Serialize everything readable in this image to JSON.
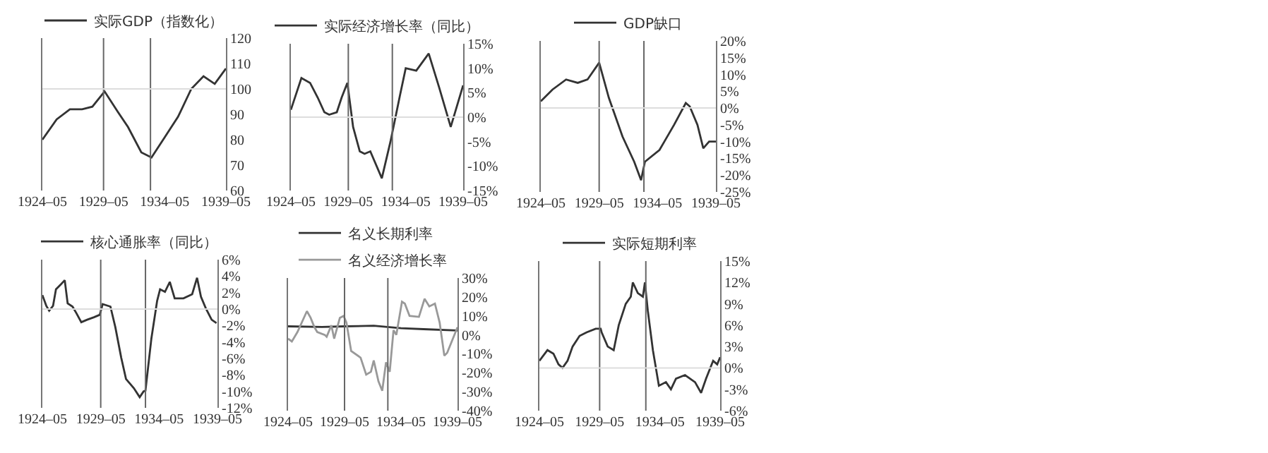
{
  "chart_data": [
    {
      "type": "line",
      "legend": "top",
      "series": [
        {
          "name": "实际GDP（指数化）",
          "color": "#333333",
          "x": [
            "1924-05",
            "1925-07",
            "1926-08",
            "1927-08",
            "1928-06",
            "1929-06",
            "1930-07",
            "1931-05",
            "1932-06",
            "1933-04",
            "1934-05",
            "1935-06",
            "1936-07",
            "1937-07",
            "1938-06",
            "1939-05"
          ],
          "values": [
            80,
            88,
            92,
            92,
            93,
            99,
            91,
            85,
            75,
            73,
            81,
            89,
            100,
            105,
            102,
            108
          ]
        }
      ],
      "xlim": [
        "1924-05",
        "1939-05"
      ],
      "xticks": [
        {
          "value": "1924-05",
          "label": "1924–05"
        },
        {
          "value": "1929-05",
          "label": "1929–05"
        },
        {
          "value": "1934-05",
          "label": "1934–05"
        },
        {
          "value": "1939-05",
          "label": "1939–05"
        }
      ],
      "ylim": [
        60,
        120
      ],
      "yticks": [
        60,
        70,
        80,
        90,
        100,
        110,
        120
      ],
      "ref_lines": [
        {
          "axis": "x",
          "value": "1929-05",
          "color": "#666666"
        },
        {
          "axis": "x",
          "value": "1933-03",
          "color": "#666666"
        },
        {
          "axis": "y",
          "value": 100,
          "color": "#dddddd"
        }
      ]
    },
    {
      "type": "line",
      "legend": "top",
      "series": [
        {
          "name": "实际经济增长率（同比）",
          "color": "#333333",
          "x": [
            "1924-05",
            "1925-04",
            "1926-01",
            "1926-09",
            "1927-04",
            "1927-09",
            "1928-05",
            "1928-10",
            "1929-04",
            "1929-10",
            "1930-05",
            "1930-10",
            "1931-04",
            "1932-04",
            "1933-01",
            "1933-11",
            "1934-05",
            "1935-04",
            "1936-05",
            "1937-04",
            "1938-04",
            "1939-05"
          ],
          "values": [
            1.5,
            8,
            7,
            4,
            1,
            0.5,
            1,
            4,
            7,
            -2,
            -7,
            -7.5,
            -7,
            -12.5,
            -5,
            4.5,
            10,
            9.5,
            13,
            6,
            -2,
            6.5
          ]
        }
      ],
      "xlim": [
        "1924-05",
        "1939-05"
      ],
      "xticks": [
        {
          "value": "1924-05",
          "label": "1924–05"
        },
        {
          "value": "1929-05",
          "label": "1929–05"
        },
        {
          "value": "1934-05",
          "label": "1934–05"
        },
        {
          "value": "1939-05",
          "label": "1939–05"
        }
      ],
      "ylim": [
        -15,
        15
      ],
      "yticks": [
        {
          "value": -15,
          "label": "-15%"
        },
        {
          "value": -10,
          "label": "-10%"
        },
        {
          "value": -5,
          "label": "-5%"
        },
        {
          "value": 0,
          "label": "0%"
        },
        {
          "value": 5,
          "label": "5%"
        },
        {
          "value": 10,
          "label": "10%"
        },
        {
          "value": 15,
          "label": "15%"
        }
      ],
      "ref_lines": [
        {
          "axis": "x",
          "value": "1929-05",
          "color": "#666666"
        },
        {
          "axis": "x",
          "value": "1933-03",
          "color": "#666666"
        },
        {
          "axis": "y",
          "value": 0,
          "color": "#dddddd"
        }
      ]
    },
    {
      "type": "line",
      "legend": "top",
      "series": [
        {
          "name": "GDP缺口",
          "color": "#333333",
          "x": [
            "1924-05",
            "1925-05",
            "1926-07",
            "1927-07",
            "1928-05",
            "1929-05",
            "1930-03",
            "1931-05",
            "1932-05",
            "1932-12",
            "1933-04",
            "1934-07",
            "1934-12",
            "1935-10",
            "1936-10",
            "1937-02",
            "1937-10",
            "1938-04",
            "1938-10",
            "1939-05"
          ],
          "values": [
            2,
            5.5,
            8.5,
            7.5,
            8.5,
            13.5,
            3,
            -8.5,
            -16,
            -21.5,
            -16,
            -12.5,
            -10,
            -5,
            1.5,
            0.5,
            -5,
            -12,
            -10,
            -10
          ]
        }
      ],
      "xlim": [
        "1924-05",
        "1939-05"
      ],
      "xticks": [
        {
          "value": "1924-05",
          "label": "1924–05"
        },
        {
          "value": "1929-05",
          "label": "1929–05"
        },
        {
          "value": "1934-05",
          "label": "1934–05"
        },
        {
          "value": "1939-05",
          "label": "1939–05"
        }
      ],
      "ylim": [
        -25,
        20
      ],
      "yticks": [
        {
          "value": -25,
          "label": "-25%"
        },
        {
          "value": -20,
          "label": "-20%"
        },
        {
          "value": -15,
          "label": "-15%"
        },
        {
          "value": -10,
          "label": "-10%"
        },
        {
          "value": -5,
          "label": "-5%"
        },
        {
          "value": 0,
          "label": "0%"
        },
        {
          "value": 5,
          "label": "5%"
        },
        {
          "value": 10,
          "label": "10%"
        },
        {
          "value": 15,
          "label": "15%"
        },
        {
          "value": 20,
          "label": "20%"
        }
      ],
      "ref_lines": [
        {
          "axis": "x",
          "value": "1929-05",
          "color": "#666666"
        },
        {
          "axis": "x",
          "value": "1933-03",
          "color": "#666666"
        },
        {
          "axis": "y",
          "value": 0,
          "color": "#dddddd"
        }
      ]
    },
    {
      "type": "line",
      "legend": "top",
      "series": [
        {
          "name": "核心通胀率（同比）",
          "color": "#333333",
          "x": [
            "1924-05",
            "1924-09",
            "1924-12",
            "1925-04",
            "1925-07",
            "1925-12",
            "1926-04",
            "1926-07",
            "1926-12",
            "1927-04",
            "1927-09",
            "1928-03",
            "1928-10",
            "1929-04",
            "1929-07",
            "1930-03",
            "1930-08",
            "1931-02",
            "1931-07",
            "1932-03",
            "1932-09",
            "1933-01",
            "1933-03",
            "1933-09",
            "1934-03",
            "1934-06",
            "1934-11",
            "1935-04",
            "1935-09",
            "1936-06",
            "1937-03",
            "1937-08",
            "1937-12",
            "1938-05",
            "1938-11",
            "1939-04"
          ],
          "values": [
            1.7,
            0.4,
            -0.2,
            0.4,
            2.4,
            3,
            3.5,
            0.7,
            0.3,
            -0.5,
            -1.6,
            -1.3,
            -1,
            -0.7,
            0.6,
            0.3,
            -2.2,
            -5.9,
            -8.5,
            -9.6,
            -10.7,
            -10,
            -9.9,
            -3.6,
            1,
            2.4,
            2.1,
            3.3,
            1.3,
            1.3,
            1.8,
            3.8,
            1.5,
            0.1,
            -1.3,
            -1.7
          ]
        }
      ],
      "xlim": [
        "1924-05",
        "1939-05"
      ],
      "xticks": [
        {
          "value": "1924-05",
          "label": "1924–05"
        },
        {
          "value": "1929-05",
          "label": "1929–05"
        },
        {
          "value": "1934-05",
          "label": "1934–05"
        },
        {
          "value": "1939-05",
          "label": "1939–05"
        }
      ],
      "ylim": [
        -12,
        6
      ],
      "yticks": [
        {
          "value": -12,
          "label": "-12%"
        },
        {
          "value": -10,
          "label": "-10%"
        },
        {
          "value": -8,
          "label": "-8%"
        },
        {
          "value": -6,
          "label": "-6%"
        },
        {
          "value": -4,
          "label": "-4%"
        },
        {
          "value": -2,
          "label": "-2%"
        },
        {
          "value": 0,
          "label": "0%"
        },
        {
          "value": 2,
          "label": "2%"
        },
        {
          "value": 4,
          "label": "4%"
        },
        {
          "value": 6,
          "label": "6%"
        }
      ],
      "ref_lines": [
        {
          "axis": "x",
          "value": "1929-05",
          "color": "#666666"
        },
        {
          "axis": "x",
          "value": "1933-03",
          "color": "#666666"
        },
        {
          "axis": "y",
          "value": 0,
          "color": "#dddddd"
        }
      ]
    },
    {
      "type": "line",
      "legend": "top",
      "series": [
        {
          "name": "名义长期利率",
          "color": "#333333",
          "x": [
            "1924-05",
            "1927-05",
            "1929-05",
            "1931-12",
            "1934-05",
            "1936-05",
            "1939-05"
          ],
          "values": [
            4.5,
            4.2,
            4.5,
            4.8,
            3.5,
            3,
            2.3
          ]
        },
        {
          "name": "名义经济增长率",
          "color": "#999999",
          "x": [
            "1924-05",
            "1924-09",
            "1925-03",
            "1926-01",
            "1926-05",
            "1926-09",
            "1926-12",
            "1927-08",
            "1927-10",
            "1928-03",
            "1928-06",
            "1928-12",
            "1929-04",
            "1929-07",
            "1929-12",
            "1930-10",
            "1931-04",
            "1931-09",
            "1931-12",
            "1932-05",
            "1932-09",
            "1933-01",
            "1933-05",
            "1933-09",
            "1933-12",
            "1934-06",
            "1934-09",
            "1935-02",
            "1935-12",
            "1936-06",
            "1936-11",
            "1937-05",
            "1937-10",
            "1938-03",
            "1938-06",
            "1939-05"
          ],
          "values": [
            -2,
            -3.5,
            1.5,
            12.5,
            9,
            4,
            1.5,
            0,
            -1,
            5,
            -2,
            9,
            10,
            6.5,
            -8.5,
            -12,
            -21,
            -19.5,
            -13.5,
            -24.5,
            -29.5,
            -14.5,
            -19.5,
            2.5,
            0,
            17.5,
            16.5,
            10,
            9.5,
            19,
            15,
            16.5,
            6.5,
            -11,
            -9.5,
            4
          ]
        }
      ],
      "xlim": [
        "1924-05",
        "1939-05"
      ],
      "xticks": [
        {
          "value": "1924-05",
          "label": "1924–05"
        },
        {
          "value": "1929-05",
          "label": "1929–05"
        },
        {
          "value": "1934-05",
          "label": "1934–05"
        },
        {
          "value": "1939-05",
          "label": "1939–05"
        }
      ],
      "ylim": [
        -40,
        30
      ],
      "yticks": [
        {
          "value": -40,
          "label": "-40%"
        },
        {
          "value": -30,
          "label": "-30%"
        },
        {
          "value": -20,
          "label": "-20%"
        },
        {
          "value": -10,
          "label": "-10%"
        },
        {
          "value": 0,
          "label": "0%"
        },
        {
          "value": 10,
          "label": "10%"
        },
        {
          "value": 20,
          "label": "20%"
        },
        {
          "value": 30,
          "label": "30%"
        }
      ],
      "ref_lines": [
        {
          "axis": "x",
          "value": "1929-05",
          "color": "#666666"
        },
        {
          "axis": "x",
          "value": "1933-03",
          "color": "#666666"
        }
      ]
    },
    {
      "type": "line",
      "legend": "top",
      "series": [
        {
          "name": "实际短期利率",
          "color": "#333333",
          "x": [
            "1924-05",
            "1925-01",
            "1925-07",
            "1925-12",
            "1926-04",
            "1926-09",
            "1927-02",
            "1927-09",
            "1928-04",
            "1929-01",
            "1929-06",
            "1929-07",
            "1930-01",
            "1930-07",
            "1930-12",
            "1931-07",
            "1931-12",
            "1932-02",
            "1932-07",
            "1932-12",
            "1933-02",
            "1933-05",
            "1933-10",
            "1934-04",
            "1934-11",
            "1935-04",
            "1935-09",
            "1936-06",
            "1937-04",
            "1937-10",
            "1938-03",
            "1938-10",
            "1939-02",
            "1939-05"
          ],
          "values": [
            1,
            2.5,
            2,
            0.5,
            0,
            1,
            3,
            4.5,
            5,
            5.5,
            5.5,
            5,
            3,
            2.5,
            6,
            9,
            10,
            12,
            10.5,
            10,
            12,
            8,
            2.5,
            -2.5,
            -2,
            -3,
            -1.5,
            -1,
            -2,
            -3.5,
            -1.5,
            1,
            0.5,
            1.5
          ]
        }
      ],
      "xlim": [
        "1924-05",
        "1939-05"
      ],
      "xticks": [
        {
          "value": "1924-05",
          "label": "1924–05"
        },
        {
          "value": "1929-05",
          "label": "1929–05"
        },
        {
          "value": "1934-05",
          "label": "1934–05"
        },
        {
          "value": "1939-05",
          "label": "1939–05"
        }
      ],
      "ylim": [
        -6,
        15
      ],
      "yticks": [
        {
          "value": -6,
          "label": "-6%"
        },
        {
          "value": -3,
          "label": "-3%"
        },
        {
          "value": 0,
          "label": "0%"
        },
        {
          "value": 3,
          "label": "3%"
        },
        {
          "value": 6,
          "label": "6%"
        },
        {
          "value": 9,
          "label": "9%"
        },
        {
          "value": 12,
          "label": "12%"
        },
        {
          "value": 15,
          "label": "15%"
        }
      ],
      "ref_lines": [
        {
          "axis": "x",
          "value": "1929-05",
          "color": "#666666"
        },
        {
          "axis": "x",
          "value": "1933-03",
          "color": "#666666"
        },
        {
          "axis": "y",
          "value": 0,
          "color": "#dddddd"
        }
      ]
    }
  ]
}
